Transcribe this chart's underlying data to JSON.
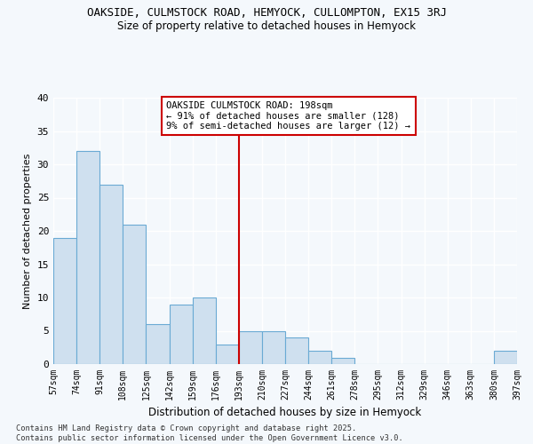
{
  "title": "OAKSIDE, CULMSTOCK ROAD, HEMYOCK, CULLOMPTON, EX15 3RJ",
  "subtitle": "Size of property relative to detached houses in Hemyock",
  "xlabel": "Distribution of detached houses by size in Hemyock",
  "ylabel": "Number of detached properties",
  "bar_color": "#cfe0ef",
  "bar_edge_color": "#6aaad4",
  "background_color": "#f4f8fc",
  "grid_color": "#ffffff",
  "bins": [
    57,
    74,
    91,
    108,
    125,
    142,
    159,
    176,
    193,
    210,
    227,
    244,
    261,
    278,
    295,
    312,
    329,
    346,
    363,
    380,
    397
  ],
  "counts": [
    19,
    32,
    27,
    21,
    6,
    9,
    10,
    3,
    5,
    5,
    4,
    2,
    1,
    0,
    0,
    0,
    0,
    0,
    0,
    2
  ],
  "vline_x": 193,
  "vline_color": "#cc0000",
  "annotation_text": "OAKSIDE CULMSTOCK ROAD: 198sqm\n← 91% of detached houses are smaller (128)\n9% of semi-detached houses are larger (12) →",
  "annotation_box_color": "#ffffff",
  "annotation_box_edge": "#cc0000",
  "ylim": [
    0,
    40
  ],
  "yticks": [
    0,
    5,
    10,
    15,
    20,
    25,
    30,
    35,
    40
  ],
  "footnote": "Contains HM Land Registry data © Crown copyright and database right 2025.\nContains public sector information licensed under the Open Government Licence v3.0.",
  "tick_labels": [
    "57sqm",
    "74sqm",
    "91sqm",
    "108sqm",
    "125sqm",
    "142sqm",
    "159sqm",
    "176sqm",
    "193sqm",
    "210sqm",
    "227sqm",
    "244sqm",
    "261sqm",
    "278sqm",
    "295sqm",
    "312sqm",
    "329sqm",
    "346sqm",
    "363sqm",
    "380sqm",
    "397sqm"
  ]
}
